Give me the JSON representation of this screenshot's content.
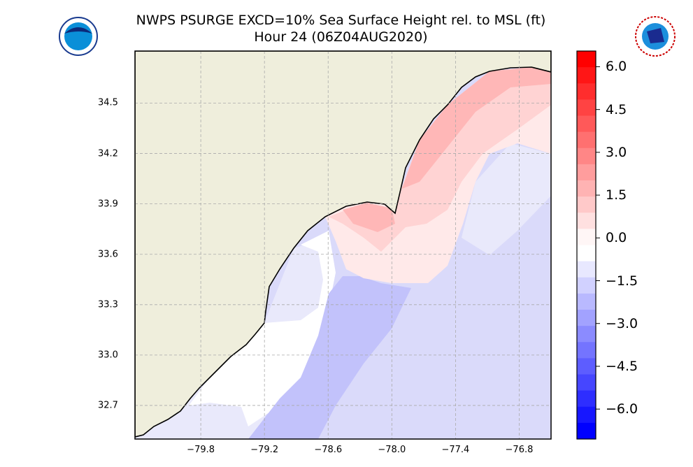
{
  "title": "NWPS PSURGE EXCD=10% Sea Surface Height rel. to MSL (ft)",
  "subtitle": "Hour 24 (06Z04AUG2020)",
  "logos": {
    "left": "NOAA",
    "right": "National Weather Service"
  },
  "map": {
    "lon_range": [
      -80.42,
      -76.5
    ],
    "lat_range": [
      32.5,
      34.81
    ],
    "lon_ticks": [
      {
        "v": -79.8,
        "label": "−79.8"
      },
      {
        "v": -79.2,
        "label": "−79.2"
      },
      {
        "v": -78.6,
        "label": "−78.6"
      },
      {
        "v": -78.0,
        "label": "−78.0"
      },
      {
        "v": -77.4,
        "label": "−77.4"
      },
      {
        "v": -76.8,
        "label": "−76.8"
      }
    ],
    "lat_ticks": [
      {
        "v": 34.5,
        "label": "34.5"
      },
      {
        "v": 34.2,
        "label": "34.2"
      },
      {
        "v": 33.9,
        "label": "33.9"
      },
      {
        "v": 33.6,
        "label": "33.6"
      },
      {
        "v": 33.3,
        "label": "33.3"
      },
      {
        "v": 33.0,
        "label": "33.0"
      },
      {
        "v": 32.7,
        "label": "32.7"
      }
    ],
    "grid": true,
    "land_color": "#efeedc"
  },
  "colorbar": {
    "range": [
      -7.05,
      6.55
    ],
    "bands": 24,
    "max_color": "#ff0000",
    "mid_color": "#ffffff",
    "min_color": "#0000ff",
    "ticks": [
      {
        "v": 6.0,
        "label": "6.0"
      },
      {
        "v": 4.5,
        "label": "4.5"
      },
      {
        "v": 3.0,
        "label": "3.0"
      },
      {
        "v": 1.5,
        "label": "1.5"
      },
      {
        "v": 0.0,
        "label": "0.0"
      },
      {
        "v": -1.5,
        "label": "−1.5"
      },
      {
        "v": -3.0,
        "label": "−3.0"
      },
      {
        "v": -4.5,
        "label": "−4.5"
      },
      {
        "v": -6.0,
        "label": "−6.0"
      }
    ]
  }
}
